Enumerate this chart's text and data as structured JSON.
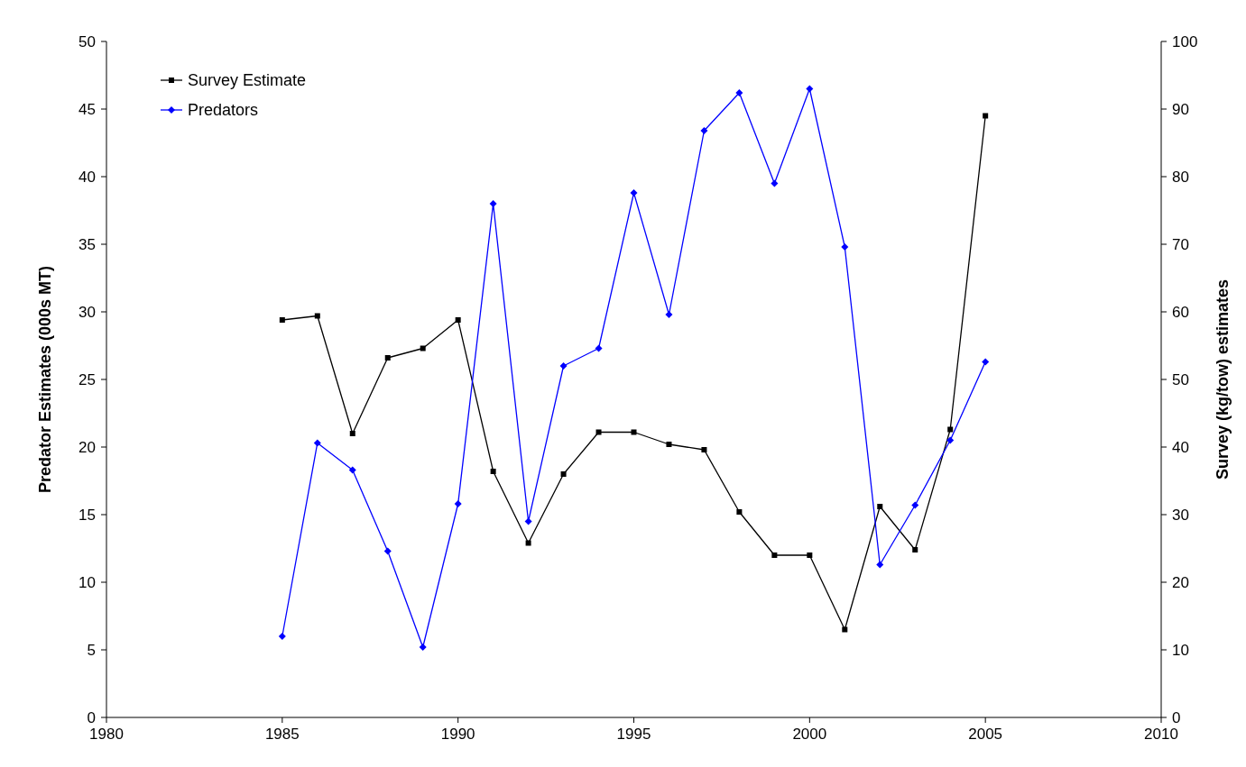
{
  "chart_data": {
    "type": "line",
    "ylabel": "Predator Estimates (000s MT)",
    "y2label": "Survey (kg/tow) estimates",
    "x": [
      1985,
      1986,
      1987,
      1988,
      1989,
      1990,
      1991,
      1992,
      1993,
      1994,
      1995,
      1996,
      1997,
      1998,
      1999,
      2000,
      2001,
      2002,
      2003,
      2004,
      2005
    ],
    "xlim": [
      1980,
      2010
    ],
    "xticks": [
      1980,
      1985,
      1990,
      1995,
      2000,
      2005,
      2010
    ],
    "ylim": [
      0,
      50
    ],
    "yticks": [
      0,
      5,
      10,
      15,
      20,
      25,
      30,
      35,
      40,
      45,
      50
    ],
    "y2lim": [
      0,
      100
    ],
    "y2ticks": [
      0,
      10,
      20,
      30,
      40,
      50,
      60,
      70,
      80,
      90,
      100
    ],
    "legend": "top left",
    "grid": false,
    "series": [
      {
        "name": "Survey Estimate",
        "color": "#000000",
        "axis": "y2",
        "marker": "square",
        "values": [
          58.8,
          59.4,
          42,
          53.2,
          54.6,
          58.8,
          36.4,
          25.8,
          36,
          42.2,
          42.2,
          40.4,
          39.6,
          30.4,
          24,
          24,
          13,
          31.2,
          24.8,
          42.6,
          89
        ]
      },
      {
        "name": "Predators",
        "color": "#0000ff",
        "axis": "y",
        "marker": "diamond",
        "values": [
          6.0,
          20.3,
          18.3,
          12.3,
          5.2,
          15.8,
          38.0,
          14.5,
          26.0,
          27.3,
          38.8,
          29.8,
          43.4,
          46.2,
          39.5,
          46.5,
          34.8,
          11.3,
          15.7,
          20.5,
          26.3
        ]
      }
    ]
  }
}
